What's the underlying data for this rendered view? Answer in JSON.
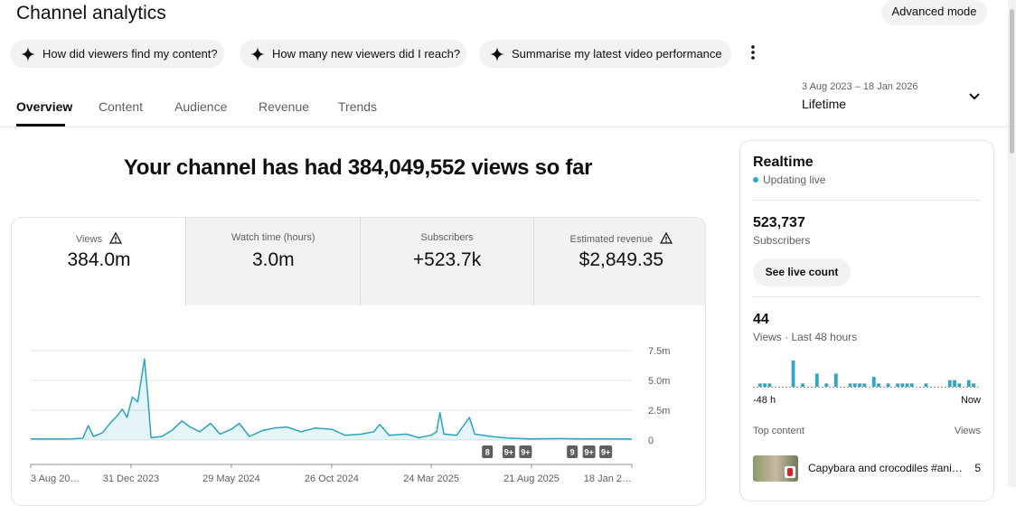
{
  "header": {
    "title": "Channel analytics",
    "advanced_mode": "Advanced mode"
  },
  "suggestions": [
    "How did viewers find my content?",
    "How many new viewers did I reach?",
    "Summarise my latest video performance"
  ],
  "tabs": [
    "Overview",
    "Content",
    "Audience",
    "Revenue",
    "Trends"
  ],
  "date_range": {
    "range": "3 Aug 2023 – 18 Jan 2026",
    "period": "Lifetime"
  },
  "headline": "Your channel has had 384,049,552 views so far",
  "metrics": [
    {
      "label": "Views",
      "value": "384.0m",
      "warning": true
    },
    {
      "label": "Watch time (hours)",
      "value": "3.0m",
      "warning": false
    },
    {
      "label": "Subscribers",
      "value": "+523.7k",
      "warning": false
    },
    {
      "label": "Estimated revenue",
      "value": "$2,849.35",
      "warning": true
    }
  ],
  "chart_data": [
    {
      "type": "line",
      "color": "#2ba3be",
      "area": true,
      "grid": true,
      "x": [
        "2023-08-03",
        "2023-09-01",
        "2023-10-01",
        "2023-10-20",
        "2023-10-28",
        "2023-11-05",
        "2023-11-18",
        "2023-12-01",
        "2023-12-10",
        "2023-12-18",
        "2023-12-25",
        "2024-01-02",
        "2024-01-10",
        "2024-01-15",
        "2024-01-20",
        "2024-01-25",
        "2024-01-30",
        "2024-02-15",
        "2024-03-01",
        "2024-03-16",
        "2024-03-28",
        "2024-04-12",
        "2024-04-28",
        "2024-05-12",
        "2024-05-29",
        "2024-06-10",
        "2024-06-25",
        "2024-07-15",
        "2024-08-01",
        "2024-08-20",
        "2024-09-10",
        "2024-10-01",
        "2024-10-26",
        "2024-11-15",
        "2024-12-10",
        "2024-12-28",
        "2025-01-06",
        "2025-01-20",
        "2025-02-15",
        "2025-03-05",
        "2025-03-24",
        "2025-04-01",
        "2025-04-06",
        "2025-04-12",
        "2025-05-01",
        "2025-05-20",
        "2025-05-28",
        "2025-06-20",
        "2025-07-20",
        "2025-08-21",
        "2025-10-01",
        "2025-11-15",
        "2025-12-15",
        "2026-01-18"
      ],
      "values": [
        100000,
        80000,
        90000,
        150000,
        1200000,
        300000,
        600000,
        1500000,
        2000000,
        2600000,
        1900000,
        3600000,
        3200000,
        5000000,
        6800000,
        3800000,
        200000,
        300000,
        800000,
        1600000,
        1100000,
        700000,
        1400000,
        500000,
        900000,
        1400000,
        300000,
        800000,
        1000000,
        1100000,
        700000,
        1000000,
        900000,
        400000,
        500000,
        700000,
        1300000,
        400000,
        500000,
        200000,
        400000,
        700000,
        2300000,
        500000,
        400000,
        1900000,
        500000,
        300000,
        150000,
        100000,
        120000,
        90000,
        100000,
        80000
      ],
      "xlim": [
        "2023-08-03",
        "2026-01-18"
      ],
      "xticks": [
        {
          "value": "2023-08-03",
          "label": "3 Aug 20…"
        },
        {
          "value": "2023-12-31",
          "label": "31 Dec 2023"
        },
        {
          "value": "2024-05-29",
          "label": "29 May 2024"
        },
        {
          "value": "2024-10-26",
          "label": "26 Oct 2024"
        },
        {
          "value": "2025-03-24",
          "label": "24 Mar 2025"
        },
        {
          "value": "2025-08-21",
          "label": "21 Aug 2025"
        },
        {
          "value": "2026-01-18",
          "label": "18 Jan 2…"
        }
      ],
      "ylim": [
        0,
        7500000
      ],
      "yticks": [
        0,
        {
          "value": 2500000,
          "label": "2.5m"
        },
        {
          "value": 5000000,
          "label": "5.0m"
        },
        {
          "value": 7500000,
          "label": "7.5m"
        }
      ],
      "annotations": [
        {
          "x": "2025-06-16",
          "label": "8"
        },
        {
          "x": "2025-07-18",
          "label": "9+"
        },
        {
          "x": "2025-08-12",
          "label": "9+"
        },
        {
          "x": "2025-10-21",
          "label": "9"
        },
        {
          "x": "2025-11-15",
          "label": "9+"
        },
        {
          "x": "2025-12-10",
          "label": "9+"
        }
      ]
    },
    {
      "type": "bar",
      "color": "#32a5c4",
      "categories": [
        "-48 h",
        null,
        null,
        null,
        null,
        null,
        null,
        null,
        null,
        null,
        null,
        null,
        null,
        null,
        null,
        null,
        null,
        null,
        null,
        null,
        null,
        null,
        null,
        null,
        null,
        null,
        null,
        null,
        null,
        null,
        null,
        null,
        null,
        null,
        null,
        null,
        null,
        null,
        null,
        null,
        null,
        null,
        null,
        null,
        null,
        null,
        null,
        "Now"
      ],
      "values": [
        0,
        1,
        1,
        1,
        0,
        0,
        0,
        0,
        8,
        0,
        1,
        0,
        0,
        4,
        0,
        1,
        0,
        4,
        0,
        0,
        1,
        1,
        1,
        1,
        0,
        3,
        1,
        0,
        1,
        0,
        1,
        1,
        1,
        1,
        0,
        0,
        1,
        0,
        0,
        0,
        0,
        2,
        2,
        1,
        0,
        2,
        1,
        0
      ]
    }
  ],
  "realtime": {
    "title": "Realtime",
    "status": "Updating live",
    "subscribers": "523,737",
    "subscribers_label": "Subscribers",
    "button": "See live count",
    "views": 44,
    "views_label": "Views · Last 48 hours",
    "top_content_label": "Top content",
    "top_content_views_label": "Views",
    "top_content": [
      {
        "title": "Capybara and crocodiles #ani…",
        "views": 5
      }
    ]
  }
}
